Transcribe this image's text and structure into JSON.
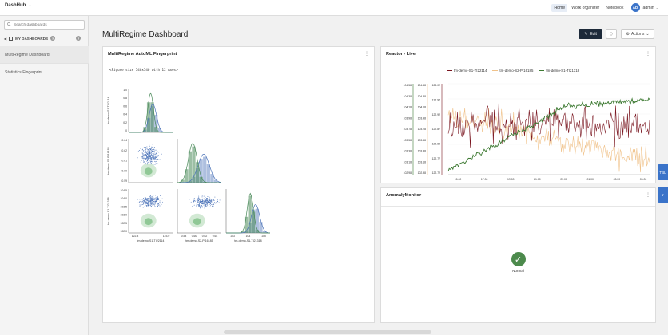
{
  "topbar": {
    "brand": "DashHub",
    "nav": [
      "Home",
      "Work organizer",
      "Notebook"
    ],
    "user_initials": "AD",
    "user_name": "admin"
  },
  "sidebar": {
    "search_placeholder": "Search dashboards",
    "section_title": "MY DASHBOARDS",
    "items": [
      {
        "label": "MultiRegime Dashboard"
      },
      {
        "label": "Statistics Fingerprint"
      }
    ]
  },
  "main": {
    "title": "MultiRegime Dashboard",
    "edit_label": "Edit",
    "actions_label": "Actions",
    "side_buttons": [
      "TBL"
    ]
  },
  "fingerprint_card": {
    "title": "MultiRegime AutoML Fingerprint",
    "figure_text": "<Figure size 540x540 with 12 Axes>",
    "variables": [
      "tm-demo-S1-TI22114",
      "tm-demo-S2-PI16185",
      "tm-demo-S1-TI21318"
    ],
    "colors": {
      "green": "#4a8a5a",
      "blue": "#4a72b8",
      "lightgreen": "#c7e3c9"
    }
  },
  "reactor_card": {
    "title": "Reactor - Live",
    "legend": [
      {
        "name": "tm-demo-S1-TI22114",
        "color": "#7a1620"
      },
      {
        "name": "tm-demo-S2-PI16185",
        "color": "#f0c28a"
      },
      {
        "name": "tm-demo-S1-TI21318",
        "color": "#3d7a32"
      }
    ]
  },
  "anomaly_card": {
    "title": "AnomalyMonitor",
    "status": "Normal"
  },
  "chart_data": [
    {
      "type": "line",
      "title": "Reactor - Live",
      "x": [
        "15:00",
        "17:00",
        "19:00",
        "21:00",
        "23:00",
        "01:00",
        "03:00",
        "05:00"
      ],
      "axes": [
        {
          "ticks": [
            "104.58",
            "104.38",
            "104.18",
            "103.98",
            "103.78",
            "103.58",
            "103.38",
            "103.18",
            "102.98"
          ],
          "color": "#3d7a32"
        },
        {
          "ticks": [
            "104.58",
            "104.38",
            "104.18",
            "103.98",
            "103.78",
            "103.58",
            "103.38",
            "103.18",
            "102.98"
          ],
          "color": "#f0c28a"
        },
        {
          "ticks": [
            "123.02",
            "122.97",
            "122.92",
            "122.87",
            "122.82",
            "122.77",
            "122.72"
          ],
          "color": "#7a1620"
        }
      ],
      "series": [
        {
          "name": "tm-demo-S1-TI22114",
          "color": "#7a1620",
          "trend": "noisy-flat"
        },
        {
          "name": "tm-demo-S2-PI16185",
          "color": "#f0c28a",
          "trend": "noisy-down"
        },
        {
          "name": "tm-demo-S1-TI21318",
          "color": "#3d7a32",
          "trend": "rising"
        }
      ]
    },
    {
      "type": "scatter",
      "title": "",
      "variables": [
        "tm-demo-S1-TI22114",
        "tm-demo-S2-PI16185",
        "tm-demo-S1-TI21318"
      ],
      "diag_ticks": {
        "v1": [
          "0",
          "0.2",
          "0.4",
          "0.6",
          "0.8",
          "1.0"
        ],
        "v2_y": [
          "0.64",
          "0.62",
          "0.61",
          "0.60",
          "0.59"
        ],
        "v3_y": [
          "104.5",
          "104.0",
          "103.5",
          "103.0",
          "102.5",
          "102.0"
        ],
        "x1": [
          "122.8",
          "123.0"
        ],
        "x2": [
          "0.58",
          "0.60",
          "0.62",
          "0.64"
        ],
        "x3": [
          "103",
          "104",
          "105"
        ]
      }
    }
  ]
}
